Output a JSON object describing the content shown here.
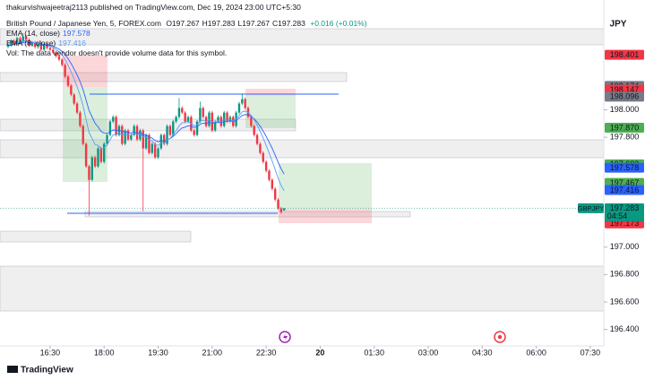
{
  "header": {
    "publisher": "thakurvishwajeetraj2113 published on TradingView.com, Dec 19, 2024 23:00 UTC+5:30",
    "currency": "JPY",
    "footer": "TradingView"
  },
  "chart_data": {
    "type": "candlestick",
    "symbol": "British Pound / Japanese Yen, 5, FOREX.com",
    "ohlc": [
      "O197.267",
      "H197.283",
      "L197.267",
      "C197.283"
    ],
    "change": "+0.016 (+0.01%)",
    "indicators": [
      {
        "label": "EMA (14, close)",
        "value": "197.578",
        "period": 14,
        "color": "#2962ff"
      },
      {
        "label": "EMA (8, close)",
        "value": "197.416",
        "period": 8,
        "color": "#5b9cf6"
      }
    ],
    "volume_note": "Vol: The data vendor doesn't provide volume data for this symbol.",
    "x": [
      "15:20",
      "15:25",
      "15:30",
      "15:35",
      "15:40",
      "15:45",
      "15:50",
      "15:55",
      "16:00",
      "16:05",
      "16:10",
      "16:15",
      "16:20",
      "16:25",
      "16:30",
      "16:35",
      "16:40",
      "16:45",
      "16:50",
      "16:55",
      "17:00",
      "17:05",
      "17:10",
      "17:15",
      "17:20",
      "17:25",
      "17:30",
      "17:35",
      "17:40",
      "17:45",
      "17:50",
      "17:55",
      "18:00",
      "18:05",
      "18:10",
      "18:15",
      "18:20",
      "18:25",
      "18:30",
      "18:35",
      "18:40",
      "18:45",
      "18:50",
      "18:55",
      "19:00",
      "19:05",
      "19:10",
      "19:15",
      "19:20",
      "19:25",
      "19:30",
      "19:35",
      "19:40",
      "19:45",
      "19:50",
      "19:55",
      "20:00",
      "20:05",
      "20:10",
      "20:15",
      "20:20",
      "20:25",
      "20:30",
      "20:35",
      "20:40",
      "20:45",
      "20:50",
      "20:55",
      "21:00",
      "21:05",
      "21:10",
      "21:15",
      "21:20",
      "21:25",
      "21:30",
      "21:35",
      "21:40",
      "21:45",
      "21:50",
      "21:55",
      "22:00",
      "22:05",
      "22:10",
      "22:15",
      "22:20",
      "22:25",
      "22:30",
      "22:35",
      "22:40",
      "22:45",
      "22:50",
      "22:55",
      "23:00"
    ],
    "open": [
      198.46,
      198.471,
      198.503,
      198.484,
      198.523,
      198.497,
      198.536,
      198.51,
      198.471,
      198.49,
      198.458,
      198.484,
      198.438,
      198.471,
      198.451,
      198.438,
      198.418,
      198.392,
      198.366,
      198.327,
      198.242,
      198.176,
      198.111,
      198.046,
      197.98,
      197.882,
      197.752,
      197.588,
      197.49,
      197.654,
      197.588,
      197.719,
      197.621,
      197.752,
      197.817,
      197.915,
      197.948,
      197.817,
      197.882,
      197.752,
      197.85,
      197.784,
      197.817,
      197.882,
      197.784,
      197.85,
      197.719,
      197.817,
      197.686,
      197.752,
      197.654,
      197.719,
      197.817,
      197.752,
      197.882,
      197.817,
      197.915,
      197.948,
      198.013,
      197.98,
      197.915,
      197.948,
      197.85,
      197.817,
      197.915,
      198.013,
      197.948,
      197.882,
      197.98,
      197.85,
      197.915,
      197.948,
      197.882,
      197.98,
      197.915,
      197.948,
      197.882,
      197.98,
      198.046,
      198.078,
      198.013,
      197.948,
      197.882,
      197.817,
      197.752,
      197.686,
      197.621,
      197.556,
      197.49,
      197.425,
      197.346,
      197.281,
      197.267
    ],
    "high": [
      198.483,
      198.515,
      198.515,
      198.535,
      198.535,
      198.56,
      198.548,
      198.522,
      198.502,
      198.502,
      198.496,
      198.496,
      198.483,
      198.483,
      198.463,
      198.45,
      198.43,
      198.404,
      198.378,
      198.339,
      198.254,
      198.188,
      198.123,
      198.058,
      197.992,
      197.894,
      197.764,
      197.6,
      197.666,
      197.666,
      197.731,
      197.731,
      197.764,
      197.829,
      197.927,
      197.96,
      197.96,
      197.894,
      197.894,
      197.862,
      197.862,
      197.829,
      197.894,
      197.894,
      197.862,
      197.862,
      197.829,
      197.829,
      197.764,
      197.764,
      197.731,
      197.829,
      197.829,
      197.894,
      197.894,
      197.927,
      197.96,
      198.085,
      198.025,
      197.992,
      197.96,
      197.96,
      197.862,
      197.927,
      198.06,
      198.025,
      197.96,
      197.992,
      197.992,
      197.927,
      197.96,
      197.96,
      197.992,
      197.992,
      197.96,
      197.96,
      197.992,
      198.058,
      198.12,
      198.09,
      198.025,
      197.96,
      197.894,
      197.829,
      197.764,
      197.698,
      197.633,
      197.568,
      197.502,
      197.437,
      197.358,
      197.293,
      197.283
    ],
    "low": [
      198.448,
      198.459,
      198.472,
      198.472,
      198.485,
      198.485,
      198.498,
      198.459,
      198.459,
      198.446,
      198.446,
      198.426,
      198.426,
      198.439,
      198.426,
      198.406,
      198.38,
      198.354,
      198.315,
      198.23,
      198.164,
      198.099,
      198.034,
      197.968,
      197.87,
      197.74,
      197.576,
      197.23,
      197.478,
      197.576,
      197.576,
      197.609,
      197.609,
      197.74,
      197.805,
      197.903,
      197.805,
      197.805,
      197.74,
      197.74,
      197.772,
      197.772,
      197.805,
      197.772,
      197.772,
      197.26,
      197.707,
      197.674,
      197.674,
      197.642,
      197.642,
      197.707,
      197.74,
      197.74,
      197.805,
      197.805,
      197.903,
      197.936,
      197.968,
      197.903,
      197.903,
      197.838,
      197.805,
      197.805,
      197.903,
      197.936,
      197.87,
      197.87,
      197.838,
      197.838,
      197.903,
      197.87,
      197.87,
      197.903,
      197.903,
      197.87,
      197.87,
      197.968,
      198.034,
      198.001,
      197.936,
      197.87,
      197.805,
      197.74,
      197.674,
      197.609,
      197.544,
      197.478,
      197.413,
      197.334,
      197.269,
      197.243,
      197.267
    ],
    "close": [
      198.471,
      198.503,
      198.484,
      198.523,
      198.497,
      198.536,
      198.51,
      198.471,
      198.49,
      198.458,
      198.484,
      198.438,
      198.471,
      198.451,
      198.438,
      198.418,
      198.392,
      198.366,
      198.327,
      198.242,
      198.176,
      198.111,
      198.046,
      197.98,
      197.882,
      197.752,
      197.588,
      197.49,
      197.654,
      197.588,
      197.719,
      197.621,
      197.752,
      197.817,
      197.915,
      197.948,
      197.817,
      197.882,
      197.752,
      197.85,
      197.784,
      197.817,
      197.882,
      197.784,
      197.85,
      197.719,
      197.817,
      197.686,
      197.752,
      197.654,
      197.719,
      197.817,
      197.752,
      197.882,
      197.817,
      197.915,
      197.948,
      198.013,
      197.98,
      197.915,
      197.948,
      197.85,
      197.817,
      197.915,
      198.013,
      197.948,
      197.882,
      197.98,
      197.85,
      197.915,
      197.948,
      197.882,
      197.98,
      197.915,
      197.948,
      197.882,
      197.98,
      198.046,
      198.078,
      198.013,
      197.948,
      197.882,
      197.817,
      197.752,
      197.686,
      197.621,
      197.556,
      197.49,
      197.425,
      197.346,
      197.281,
      197.255,
      197.283
    ],
    "up_color": "#089981",
    "down_color": "#f23645",
    "ylim": [
      196.28,
      198.8
    ],
    "yticks": [
      {
        "value": 198.0,
        "label": "198.000"
      },
      {
        "value": 197.8,
        "label": "197.800"
      },
      {
        "value": 197.0,
        "label": "197.000"
      },
      {
        "value": 196.8,
        "label": "196.800"
      },
      {
        "value": 196.6,
        "label": "196.600"
      },
      {
        "value": 196.4,
        "label": "196.400"
      }
    ],
    "xticks": [
      "16:30",
      "18:00",
      "19:30",
      "21:00",
      "22:30",
      {
        "value": "00:00",
        "label": "20"
      },
      "01:30",
      "03:00",
      "04:30",
      "06:00",
      "07:30"
    ],
    "price_labels": [
      {
        "value": 198.401,
        "label": "198.401",
        "color": "#f23645"
      },
      {
        "value": 198.174,
        "label": "198.174",
        "color": "#787b86"
      },
      {
        "value": 198.147,
        "label": "198.147",
        "color": "#f23645"
      },
      {
        "value": 198.096,
        "label": "198.096",
        "color": "#787b86"
      },
      {
        "value": 197.87,
        "label": "197.870",
        "color": "#4caf50"
      },
      {
        "value": 197.603,
        "label": "197.603",
        "color": "#4caf50"
      },
      {
        "value": 197.578,
        "label": "197.578",
        "color": "#2962ff"
      },
      {
        "value": 197.467,
        "label": "197.467",
        "color": "#4caf50"
      },
      {
        "value": 197.416,
        "label": "197.416",
        "color": "#2962ff"
      },
      {
        "value": 197.276,
        "label": "197.276",
        "color": "#787b86"
      },
      {
        "value": 197.173,
        "label": "197.173",
        "color": "#f23645"
      }
    ],
    "last_price": {
      "symbol": "GBPJPY",
      "value": 197.283,
      "label": "197.283",
      "countdown": "04:54",
      "color": "#089981"
    }
  }
}
